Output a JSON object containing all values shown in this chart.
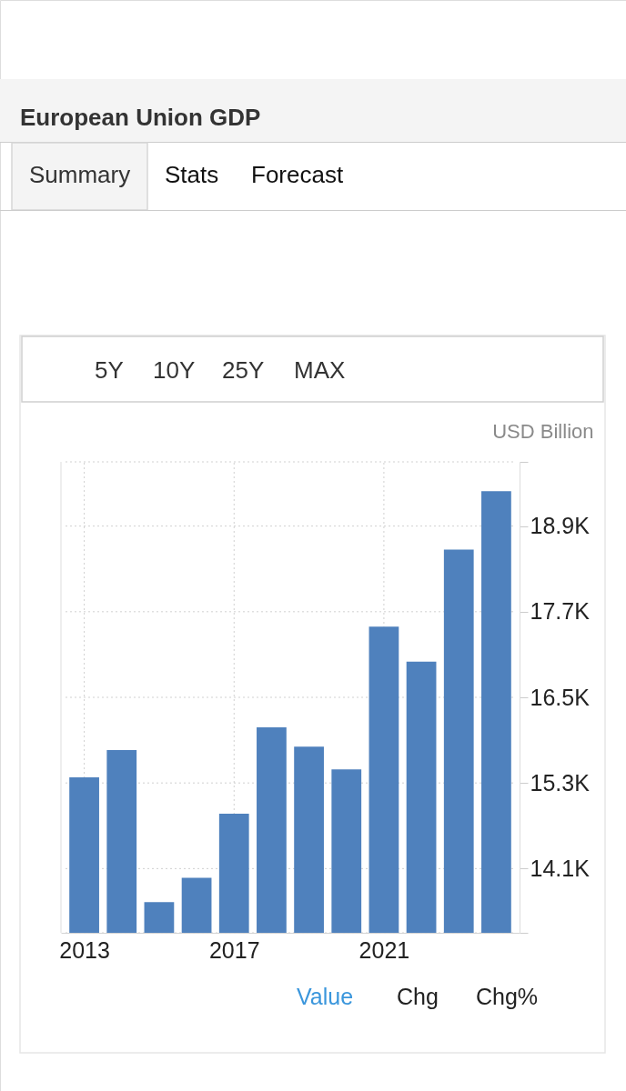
{
  "chart_data": {
    "type": "bar",
    "title": "European Union GDP",
    "ylabel": "USD Billion",
    "x": [
      2013,
      2014,
      2015,
      2016,
      2017,
      2018,
      2019,
      2020,
      2021,
      2022,
      2023,
      2024
    ],
    "values": [
      15380,
      15760,
      13630,
      13970,
      14870,
      16080,
      15810,
      15490,
      17490,
      17000,
      18570,
      19390
    ],
    "color": "#4f81bd",
    "xlim": [
      2012.5,
      2024.5
    ],
    "xticks": [
      2013,
      2017,
      2021
    ],
    "ylim": [
      13200,
      19800
    ],
    "yticks": [
      {
        "value": 13200,
        "label": null
      },
      {
        "value": 14100,
        "label": "14.1K"
      },
      {
        "value": 15300,
        "label": "15.3K"
      },
      {
        "value": 16500,
        "label": "16.5K"
      },
      {
        "value": 17700,
        "label": "17.7K"
      },
      {
        "value": 18900,
        "label": "18.9K"
      },
      {
        "value": 19800,
        "label": null
      }
    ],
    "grid": true,
    "annotations": [
      "Summary",
      "Stats",
      "Forecast",
      "5Y",
      "10Y",
      "25Y",
      "MAX",
      "Value",
      "Chg",
      "Chg%"
    ]
  }
}
